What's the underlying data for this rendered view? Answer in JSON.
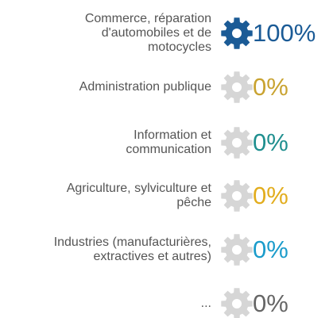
{
  "chart_data": {
    "type": "pictogram",
    "categories": [
      "Commerce, réparation\nd'automobiles et de\nmotocycles",
      "Administration publique",
      "Information et\ncommunication",
      "Agriculture, sylviculture et\npêche",
      "Industries (manufacturières,\nextractives et autres)",
      "..."
    ],
    "values": [
      100,
      0,
      0,
      0,
      0,
      0
    ],
    "value_labels": [
      "100%",
      "0%",
      "0%",
      "0%",
      "0%",
      "0%"
    ],
    "colors": [
      "#1b5b96",
      "#c9a331",
      "#1f8f8f",
      "#e2ad1e",
      "#1b9ccb",
      "#666666"
    ],
    "empty_color": "#d6d6d6"
  }
}
